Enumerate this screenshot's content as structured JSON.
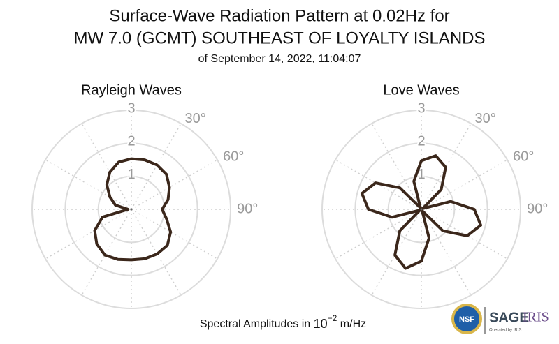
{
  "header": {
    "title": [
      "Surface-Wave Radiation Pattern at 0.02Hz for",
      "MW 7.0 (GCMT) SOUTHEAST OF LOYALTY ISLANDS"
    ],
    "subtitle": "of September 14, 2022, 11:04:07"
  },
  "chart_data": [
    {
      "type": "polar",
      "title": "Rayleigh Waves",
      "color": "#3b271b",
      "theta": [
        0,
        15,
        30,
        45,
        60,
        75,
        90,
        105,
        120,
        135,
        150,
        165,
        180,
        195,
        210,
        225,
        240,
        255,
        270,
        285,
        300,
        315,
        330,
        345
      ],
      "r": [
        1.53,
        1.55,
        1.55,
        1.5,
        1.33,
        1.15,
        0.93,
        1.1,
        1.37,
        1.54,
        1.56,
        1.55,
        1.53,
        1.57,
        1.6,
        1.48,
        1.28,
        0.9,
        0.1,
        0.5,
        0.75,
        1.05,
        1.3,
        1.48
      ],
      "rlim": [
        0,
        3
      ],
      "rticks": [
        1,
        2,
        3
      ],
      "thetagrid": [
        0,
        30,
        60,
        90,
        120,
        150,
        180,
        210,
        240,
        270,
        300,
        330
      ],
      "thetaticks": [
        {
          "value": 30,
          "label": "30°"
        },
        {
          "value": 60,
          "label": "60°"
        },
        {
          "value": 90,
          "label": "90°"
        }
      ]
    },
    {
      "type": "polar",
      "title": "Love Waves",
      "color": "#3b271b",
      "theta": [
        0,
        15,
        30,
        45,
        60,
        75,
        90,
        105,
        120,
        135,
        150,
        165,
        180,
        195,
        210,
        225,
        240,
        255,
        270,
        285,
        300,
        315,
        330,
        345
      ],
      "r": [
        1.47,
        1.68,
        1.47,
        0.85,
        0.05,
        0.92,
        1.6,
        1.86,
        1.6,
        0.92,
        0.05,
        0.9,
        1.57,
        1.85,
        1.6,
        0.92,
        0.05,
        0.92,
        1.6,
        1.86,
        1.6,
        0.92,
        0.05,
        0.88
      ],
      "rlim": [
        0,
        3
      ],
      "rticks": [
        1,
        2,
        3
      ],
      "thetagrid": [
        0,
        30,
        60,
        90,
        120,
        150,
        180,
        210,
        240,
        270,
        300,
        330
      ],
      "thetaticks": [
        {
          "value": 30,
          "label": "30°"
        },
        {
          "value": 60,
          "label": "60°"
        },
        {
          "value": 90,
          "label": "90°"
        }
      ]
    }
  ],
  "footer": {
    "text": "Spectral Amplitudes in",
    "base": "10",
    "exponent": "−2",
    "unit": "m/Hz"
  },
  "logos": {
    "nsf": "NSF",
    "sage": "SAGE",
    "iris": "IRIS",
    "operated": "Operated by IRIS"
  }
}
